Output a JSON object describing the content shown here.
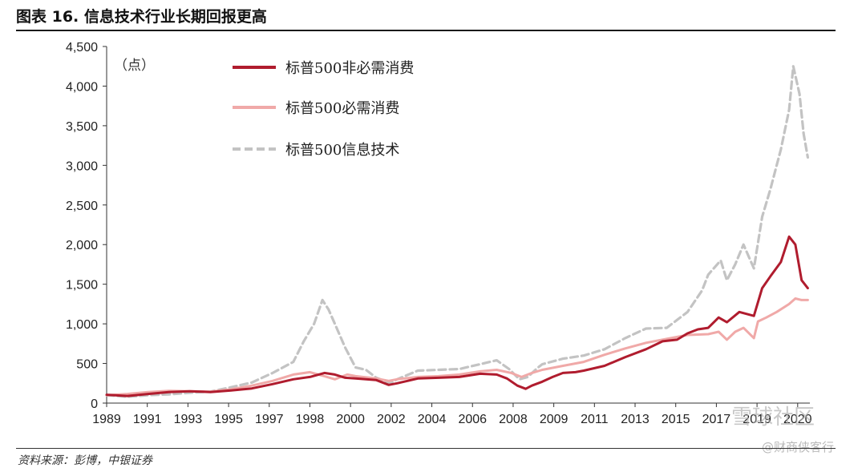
{
  "figure": {
    "title": "图表 16. 信息技术行业长期回报更高",
    "source": "资料来源：彭博，中银证券",
    "watermark": "雪球社区",
    "watermark_sub": "@财商侠客行"
  },
  "chart_data": {
    "type": "line",
    "title": "图表 16. 信息技术行业长期回报更高",
    "unit": "（点）",
    "xlabel": "",
    "ylabel": "",
    "xlim": [
      1989,
      2022.9
    ],
    "ylim": [
      0,
      4500
    ],
    "yticks": [
      0,
      500,
      1000,
      1500,
      2000,
      2500,
      3000,
      3500,
      4000,
      4500
    ],
    "ytick_labels": [
      "0",
      "500",
      "1,000",
      "1,500",
      "2,000",
      "2,500",
      "3,000",
      "3,500",
      "4,000",
      "4,500"
    ],
    "xtick_labels": [
      "1989",
      "1991",
      "1993",
      "1995",
      "1997",
      "1998",
      "2000",
      "2002",
      "2004",
      "2006",
      "2008",
      "2009",
      "2011",
      "2013",
      "2015",
      "2017",
      "2019",
      "2020"
    ],
    "grid": false,
    "legend_position": "top-center",
    "series": [
      {
        "name": "标普500非必需消费",
        "color": "#b01c2e",
        "style": "solid",
        "points": [
          [
            1989,
            105
          ],
          [
            1990,
            90
          ],
          [
            1991,
            115
          ],
          [
            1992,
            140
          ],
          [
            1993,
            150
          ],
          [
            1994,
            140
          ],
          [
            1995,
            160
          ],
          [
            1996,
            185
          ],
          [
            1997,
            240
          ],
          [
            1998,
            300
          ],
          [
            1998.8,
            330
          ],
          [
            1999.5,
            380
          ],
          [
            2000,
            360
          ],
          [
            2000.5,
            320
          ],
          [
            2001,
            310
          ],
          [
            2001.5,
            300
          ],
          [
            2002,
            290
          ],
          [
            2002.6,
            230
          ],
          [
            2003,
            250
          ],
          [
            2004,
            310
          ],
          [
            2005,
            320
          ],
          [
            2006,
            330
          ],
          [
            2007,
            370
          ],
          [
            2007.8,
            360
          ],
          [
            2008.3,
            310
          ],
          [
            2008.8,
            220
          ],
          [
            2009.2,
            180
          ],
          [
            2009.5,
            220
          ],
          [
            2010,
            270
          ],
          [
            2010.5,
            330
          ],
          [
            2011,
            380
          ],
          [
            2011.6,
            390
          ],
          [
            2012,
            410
          ],
          [
            2013,
            470
          ],
          [
            2014,
            580
          ],
          [
            2015,
            680
          ],
          [
            2015.8,
            780
          ],
          [
            2016.5,
            800
          ],
          [
            2017,
            880
          ],
          [
            2017.5,
            930
          ],
          [
            2018,
            950
          ],
          [
            2018.5,
            1080
          ],
          [
            2018.9,
            1020
          ],
          [
            2019.5,
            1150
          ],
          [
            2020.2,
            1100
          ],
          [
            2020.6,
            1450
          ],
          [
            2021,
            1600
          ],
          [
            2021.5,
            1780
          ],
          [
            2021.9,
            2100
          ],
          [
            2022.2,
            2000
          ],
          [
            2022.5,
            1550
          ],
          [
            2022.8,
            1450
          ]
        ]
      },
      {
        "name": "标普500必需消费",
        "color": "#f0a9a8",
        "style": "solid",
        "points": [
          [
            1989,
            100
          ],
          [
            1990,
            115
          ],
          [
            1991,
            140
          ],
          [
            1992,
            155
          ],
          [
            1993,
            150
          ],
          [
            1994,
            145
          ],
          [
            1995,
            175
          ],
          [
            1996,
            220
          ],
          [
            1997,
            280
          ],
          [
            1998,
            360
          ],
          [
            1998.8,
            390
          ],
          [
            1999.5,
            340
          ],
          [
            2000,
            300
          ],
          [
            2000.6,
            360
          ],
          [
            2001,
            340
          ],
          [
            2002,
            310
          ],
          [
            2002.6,
            280
          ],
          [
            2003,
            300
          ],
          [
            2004,
            330
          ],
          [
            2005,
            340
          ],
          [
            2006,
            360
          ],
          [
            2007,
            400
          ],
          [
            2007.8,
            420
          ],
          [
            2008.5,
            380
          ],
          [
            2009,
            330
          ],
          [
            2009.5,
            380
          ],
          [
            2010,
            420
          ],
          [
            2011,
            470
          ],
          [
            2012,
            520
          ],
          [
            2013,
            610
          ],
          [
            2014,
            690
          ],
          [
            2015,
            760
          ],
          [
            2016,
            810
          ],
          [
            2017,
            860
          ],
          [
            2018,
            870
          ],
          [
            2018.5,
            900
          ],
          [
            2018.9,
            800
          ],
          [
            2019.3,
            900
          ],
          [
            2019.7,
            950
          ],
          [
            2020.2,
            820
          ],
          [
            2020.4,
            1030
          ],
          [
            2020.8,
            1080
          ],
          [
            2021.3,
            1150
          ],
          [
            2021.9,
            1250
          ],
          [
            2022.2,
            1320
          ],
          [
            2022.5,
            1300
          ],
          [
            2022.8,
            1300
          ]
        ]
      },
      {
        "name": "标普500信息技术",
        "color": "#c3c3c3",
        "style": "dashed",
        "points": [
          [
            1989,
            100
          ],
          [
            1990,
            80
          ],
          [
            1991,
            100
          ],
          [
            1992,
            110
          ],
          [
            1993,
            130
          ],
          [
            1994,
            145
          ],
          [
            1995,
            200
          ],
          [
            1996,
            260
          ],
          [
            1997,
            380
          ],
          [
            1998,
            520
          ],
          [
            1998.5,
            780
          ],
          [
            1999,
            1000
          ],
          [
            1999.4,
            1300
          ],
          [
            1999.7,
            1180
          ],
          [
            2000,
            1000
          ],
          [
            2000.5,
            700
          ],
          [
            2001,
            450
          ],
          [
            2001.5,
            420
          ],
          [
            2002,
            320
          ],
          [
            2002.7,
            250
          ],
          [
            2003,
            300
          ],
          [
            2004,
            410
          ],
          [
            2005,
            420
          ],
          [
            2006,
            430
          ],
          [
            2007,
            490
          ],
          [
            2007.8,
            540
          ],
          [
            2008.4,
            430
          ],
          [
            2008.9,
            300
          ],
          [
            2009.3,
            330
          ],
          [
            2009.8,
            450
          ],
          [
            2010,
            490
          ],
          [
            2011,
            560
          ],
          [
            2012,
            600
          ],
          [
            2013,
            680
          ],
          [
            2014,
            820
          ],
          [
            2015,
            940
          ],
          [
            2016,
            950
          ],
          [
            2017,
            1150
          ],
          [
            2017.7,
            1420
          ],
          [
            2018,
            1620
          ],
          [
            2018.6,
            1800
          ],
          [
            2018.9,
            1550
          ],
          [
            2019.3,
            1750
          ],
          [
            2019.7,
            2000
          ],
          [
            2020.2,
            1700
          ],
          [
            2020.6,
            2350
          ],
          [
            2021,
            2700
          ],
          [
            2021.5,
            3200
          ],
          [
            2021.9,
            3700
          ],
          [
            2022.1,
            4250
          ],
          [
            2022.4,
            3900
          ],
          [
            2022.6,
            3400
          ],
          [
            2022.8,
            3100
          ]
        ]
      }
    ]
  }
}
